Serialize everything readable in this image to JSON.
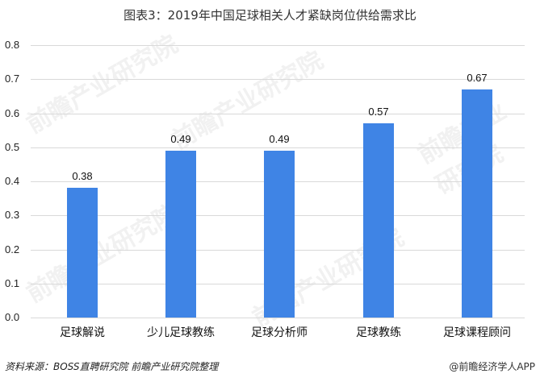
{
  "title": "图表3：2019年中国足球相关人才紧缺岗位供给需求比",
  "y_ticks": [
    "0.8",
    "0.7",
    "0.6",
    "0.5",
    "0.4",
    "0.3",
    "0.2",
    "0.1",
    "0.0"
  ],
  "bars": [
    {
      "category": "足球解说",
      "value": 0.38,
      "label": "0.38"
    },
    {
      "category": "少儿足球教练",
      "value": 0.49,
      "label": "0.49"
    },
    {
      "category": "足球分析师",
      "value": 0.49,
      "label": "0.49"
    },
    {
      "category": "足球教练",
      "value": 0.57,
      "label": "0.57"
    },
    {
      "category": "足球课程顾问",
      "value": 0.67,
      "label": "0.67"
    }
  ],
  "source": "资料来源：BOSS直聘研究院 前瞻产业研究院整理",
  "credit": "@前瞻经济学人APP",
  "watermark": "前瞻产业研究院",
  "colors": {
    "bar": "#3f84e5",
    "grid": "#d9d9d9"
  },
  "chart_data": {
    "type": "bar",
    "title": "图表3：2019年中国足球相关人才紧缺岗位供给需求比",
    "categories": [
      "足球解说",
      "少儿足球教练",
      "足球分析师",
      "足球教练",
      "足球课程顾问"
    ],
    "values": [
      0.38,
      0.49,
      0.49,
      0.57,
      0.67
    ],
    "xlabel": "",
    "ylabel": "",
    "ylim": [
      0,
      0.8
    ],
    "yticks": [
      0.0,
      0.1,
      0.2,
      0.3,
      0.4,
      0.5,
      0.6,
      0.7,
      0.8
    ],
    "grid": true,
    "legend": null,
    "data_labels": true,
    "source": "资料来源：BOSS直聘研究院 前瞻产业研究院整理"
  }
}
